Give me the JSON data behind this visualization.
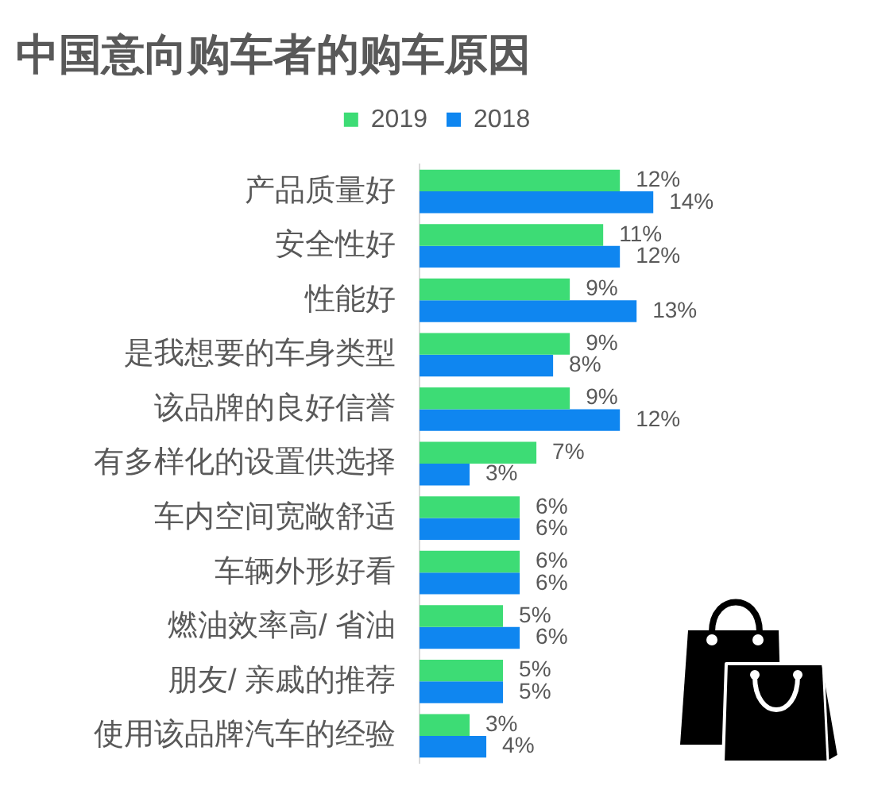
{
  "chart_data": {
    "type": "bar",
    "orientation": "horizontal",
    "title": "中国意向购车者的购车原因",
    "categories": [
      "产品质量好",
      "安全性好",
      "性能好",
      "是我想要的车身类型",
      "该品牌的良好信誉",
      "有多样化的设置供选择",
      "车内空间宽敞舒适",
      "车辆外形好看",
      "燃油效率高/ 省油",
      "朋友/ 亲戚的推荐",
      "使用该品牌汽车的经验"
    ],
    "series": [
      {
        "name": "2019",
        "color": "#3ddc75",
        "values": [
          12,
          11,
          9,
          9,
          9,
          7,
          6,
          6,
          5,
          5,
          3
        ],
        "value_labels": [
          "12%",
          "11%",
          "9%",
          "9%",
          "9%",
          "7%",
          "6%",
          "6%",
          "5%",
          "5%",
          "3%"
        ]
      },
      {
        "name": "2018",
        "color": "#0f86f0",
        "values": [
          14,
          12,
          13,
          8,
          12,
          3,
          6,
          6,
          6,
          5,
          4
        ],
        "value_labels": [
          "14%",
          "12%",
          "13%",
          "8%",
          "12%",
          "3%",
          "6%",
          "6%",
          "6%",
          "5%",
          "4%"
        ]
      }
    ],
    "legend": "top",
    "grid": false
  }
}
